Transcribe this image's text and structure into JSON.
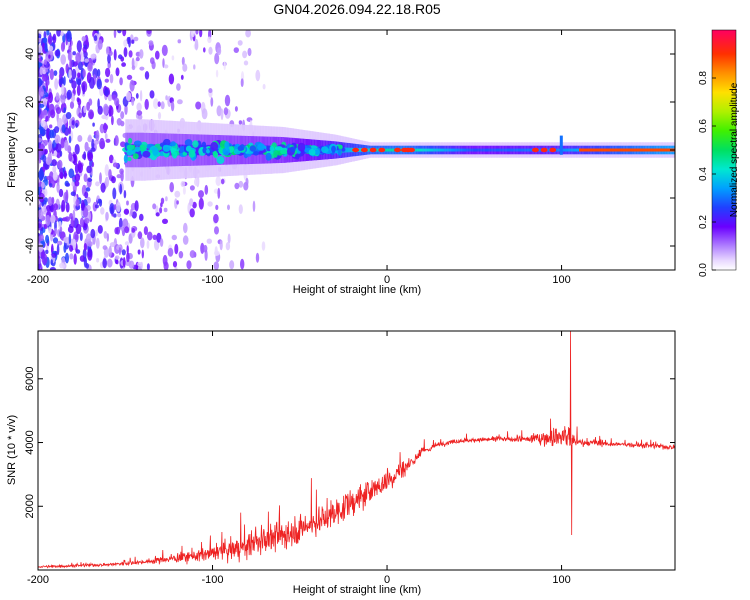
{
  "figure": {
    "title": "GN04.2026.094.22.18.R05"
  },
  "chart_data": [
    {
      "type": "heatmap",
      "title": "GN04.2026.094.22.18.R05",
      "xlabel": "Height of straight line (km)",
      "ylabel": "Frequency (Hz)",
      "xlim": [
        -200,
        165
      ],
      "ylim": [
        -50,
        50
      ],
      "xticks": [
        -200,
        -100,
        0,
        100
      ],
      "yticks": [
        -40,
        -20,
        0,
        20,
        40
      ],
      "colorbar": {
        "label": "Normalized spectral amplitude",
        "range": [
          0,
          1
        ],
        "ticks": [
          0.0,
          0.2,
          0.4,
          0.6,
          0.8
        ]
      },
      "spectral_band": [
        {
          "x": -140,
          "freq_halfwidth": 8,
          "peak_amplitude": 0.35
        },
        {
          "x": -100,
          "freq_halfwidth": 7,
          "peak_amplitude": 0.4
        },
        {
          "x": -60,
          "freq_halfwidth": 6,
          "peak_amplitude": 0.45
        },
        {
          "x": -30,
          "freq_halfwidth": 4,
          "peak_amplitude": 0.6
        },
        {
          "x": -10,
          "freq_halfwidth": 2,
          "peak_amplitude": 0.8
        },
        {
          "x": 10,
          "freq_halfwidth": 2,
          "peak_amplitude": 0.85
        },
        {
          "x": 50,
          "freq_halfwidth": 2,
          "peak_amplitude": 0.5
        },
        {
          "x": 100,
          "freq_halfwidth": 2,
          "peak_amplitude": 0.6
        },
        {
          "x": 160,
          "freq_halfwidth": 2,
          "peak_amplitude": 0.95
        }
      ]
    },
    {
      "type": "line",
      "xlabel": "Height of straight line (km)",
      "ylabel": "SNR (10 * v/v)",
      "xlim": [
        -200,
        165
      ],
      "ylim": [
        0,
        7500
      ],
      "xticks": [
        -200,
        -100,
        0,
        100
      ],
      "yticks": [
        2000,
        4000,
        6000
      ],
      "series": [
        {
          "name": "SNR",
          "color": "#ee2222",
          "x": [
            -200,
            -180,
            -160,
            -140,
            -120,
            -100,
            -80,
            -60,
            -40,
            -20,
            0,
            10,
            20,
            30,
            40,
            60,
            80,
            90,
            100,
            103,
            104,
            105,
            106,
            110,
            130,
            150,
            165
          ],
          "trend": [
            100,
            130,
            170,
            250,
            380,
            520,
            750,
            1100,
            1500,
            2100,
            2800,
            3200,
            3700,
            3950,
            4050,
            4100,
            4100,
            4150,
            4200,
            4200,
            4150,
            4100,
            4050,
            4000,
            3950,
            3900,
            3850
          ],
          "noise": [
            80,
            80,
            100,
            150,
            300,
            500,
            800,
            1000,
            1000,
            900,
            800,
            600,
            300,
            150,
            150,
            150,
            200,
            600,
            700,
            1500,
            1500,
            1500,
            700,
            250,
            150,
            150,
            150
          ],
          "spikes": [
            {
              "x": 105.2,
              "y": 7500
            },
            {
              "x": 105.7,
              "y": 1100
            }
          ]
        }
      ]
    }
  ]
}
